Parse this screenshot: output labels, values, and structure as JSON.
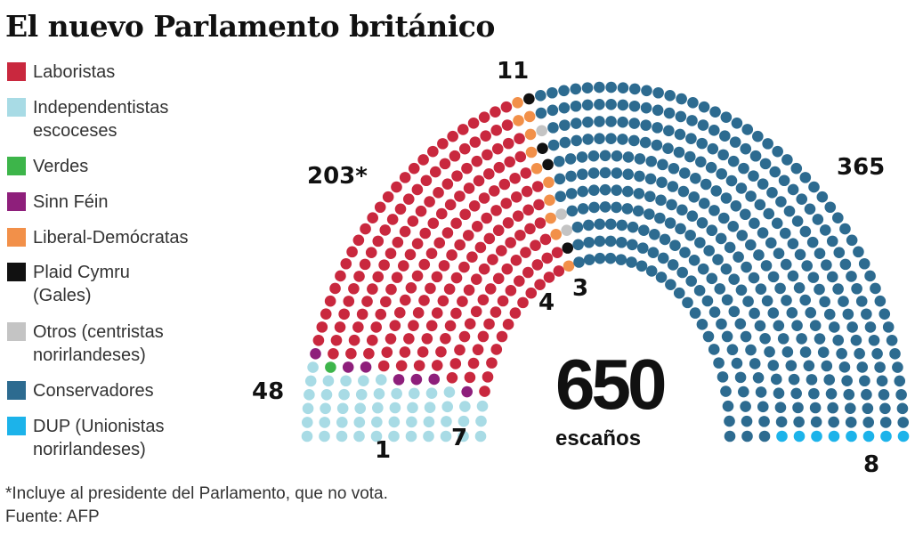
{
  "title": "El nuevo Parlamento británico",
  "chart_data": {
    "type": "parliament",
    "total": 650,
    "total_label": "escaños",
    "series": [
      {
        "name": "Independentistas escoceses",
        "values": [
          48
        ],
        "color": "#a8dbe5",
        "label": "48"
      },
      {
        "name": "Verdes",
        "values": [
          1
        ],
        "color": "#3db54a",
        "label": "1"
      },
      {
        "name": "Sinn Féin",
        "values": [
          7
        ],
        "color": "#8e1f7b",
        "label": "7"
      },
      {
        "name": "Laboristas",
        "values": [
          203
        ],
        "color": "#c9283e",
        "label": "203*"
      },
      {
        "name": "Liberal-Demócratas",
        "values": [
          11
        ],
        "color": "#f29049",
        "label": "11"
      },
      {
        "name": "Plaid Cymru (Gales)",
        "values": [
          4
        ],
        "color": "#111111",
        "label": "4"
      },
      {
        "name": "Otros (centristas norirlandeses)",
        "values": [
          3
        ],
        "color": "#c4c4c4",
        "label": "3"
      },
      {
        "name": "Conservadores",
        "values": [
          365
        ],
        "color": "#2d6b90",
        "label": "365"
      },
      {
        "name": "DUP (Unionistas norirlandeses)",
        "values": [
          8
        ],
        "color": "#1cb3ea",
        "label": "8"
      }
    ]
  },
  "legend": [
    {
      "l1": "Laboristas",
      "l2": "",
      "color": "#c9283e"
    },
    {
      "l1": "Independentistas",
      "l2": "escoceses",
      "color": "#a8dbe5"
    },
    {
      "l1": "Verdes",
      "l2": "",
      "color": "#3db54a"
    },
    {
      "l1": "Sinn Féin",
      "l2": "",
      "color": "#8e1f7b"
    },
    {
      "l1": "Liberal-Demócratas",
      "l2": "",
      "color": "#f29049"
    },
    {
      "l1": "Plaid Cymru",
      "l2": "(Gales)",
      "color": "#111111"
    },
    {
      "l1": "Otros (centristas",
      "l2": "norirlandeses)",
      "color": "#c4c4c4"
    },
    {
      "l1": "Conservadores",
      "l2": "",
      "color": "#2d6b90"
    },
    {
      "l1": "DUP (Unionistas",
      "l2": "norirlandeses)",
      "color": "#1cb3ea"
    }
  ],
  "total_number": "650",
  "footnote": "*Incluye al presidente del Parlamento, que no vota.",
  "source": "Fuente: AFP"
}
